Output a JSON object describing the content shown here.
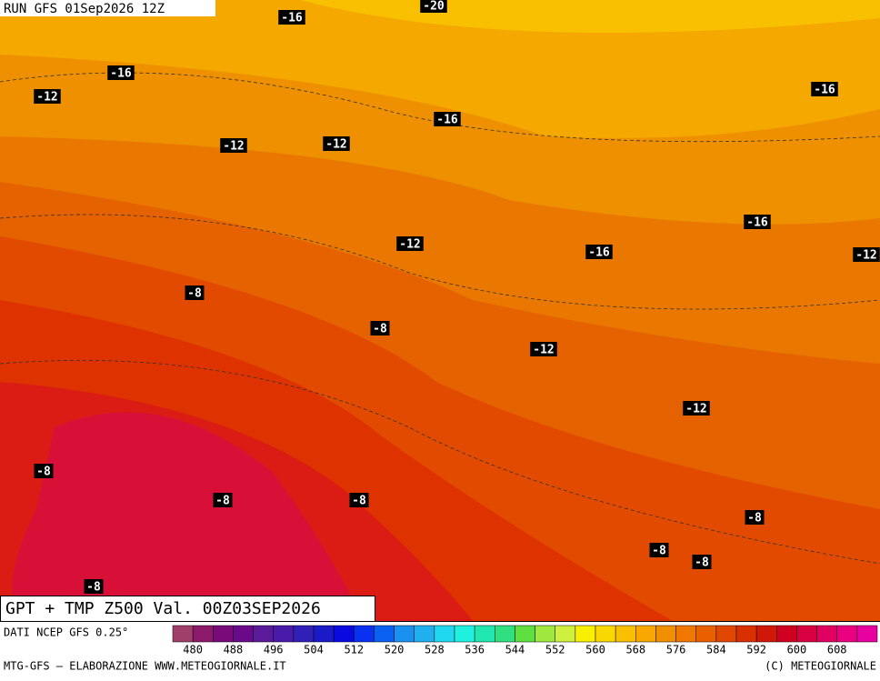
{
  "header": {
    "run": "RUN GFS 01Sep2026 12Z"
  },
  "title": "GPT + TMP Z500 Val. 00Z03SEP2026",
  "map_labels": [
    -20,
    -16,
    -16,
    -12,
    -16,
    -16,
    -12,
    -12,
    -16,
    -12,
    -16,
    -12,
    -8,
    -8,
    -12,
    -12,
    -8,
    -8,
    -8,
    -8,
    -8,
    -8,
    -8
  ],
  "legend": {
    "source": "DATI NCEP GFS 0.25°",
    "ticks": [
      480,
      488,
      496,
      504,
      512,
      520,
      528,
      536,
      544,
      552,
      560,
      568,
      576,
      584,
      592,
      600,
      608
    ],
    "colors": [
      "#a0406a",
      "#8c1a6a",
      "#7a0a7a",
      "#6a0a8a",
      "#5a1a9a",
      "#4a1aaa",
      "#3020b8",
      "#1a1ac8",
      "#0a0ae0",
      "#0a30f0",
      "#0a60f0",
      "#1a90f0",
      "#20b0f0",
      "#20d8f0",
      "#20f0e0",
      "#20e8b0",
      "#30e080",
      "#60e040",
      "#a0e840",
      "#d0f040",
      "#f8f000",
      "#f8d800",
      "#f8c000",
      "#f8a800",
      "#f09000",
      "#f07800",
      "#e86000",
      "#e04800",
      "#d83000",
      "#d01808",
      "#d00020",
      "#d80040",
      "#e00060",
      "#e80080",
      "#e800a0"
    ]
  },
  "footer": {
    "left": "MTG-GFS — ELABORAZIONE WWW.METEOGIORNALE.IT",
    "right": "(C) METEOGIORNALE"
  }
}
